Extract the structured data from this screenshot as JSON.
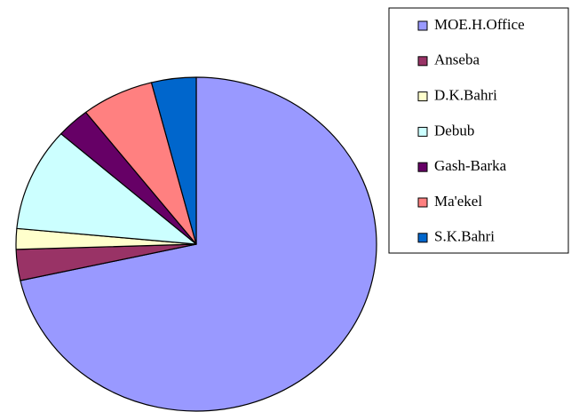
{
  "chart_data": {
    "type": "pie",
    "categories": [
      "MOE.H.Office",
      "Anseba",
      "D.K.Bahri",
      "Debub",
      "Gash-Barka",
      "Ma'ekel",
      "S.K.Bahri"
    ],
    "values": [
      71.5,
      3,
      2,
      10,
      3,
      6.5,
      4
    ],
    "colors": [
      "#9999ff",
      "#993366",
      "#ffffcc",
      "#ccffff",
      "#660066",
      "#ff8080",
      "#0066cc"
    ],
    "legend": "right"
  }
}
